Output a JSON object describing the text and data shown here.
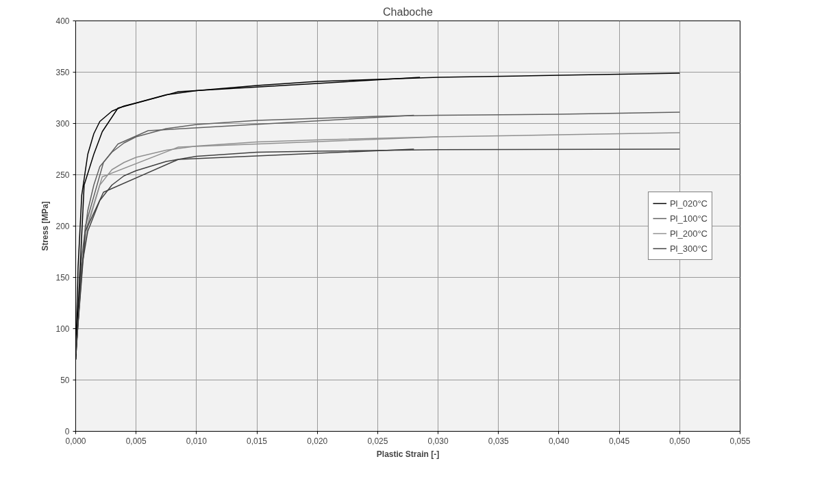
{
  "chart_data": {
    "type": "line",
    "title": "Chaboche",
    "xlabel": "Plastic Strain [-]",
    "ylabel": "Stress [MPa]",
    "xlim": [
      0,
      0.055
    ],
    "ylim": [
      0,
      400
    ],
    "xticks": [
      {
        "value": 0,
        "label": "0,000"
      },
      {
        "value": 0.005,
        "label": "0,005"
      },
      {
        "value": 0.01,
        "label": "0,010"
      },
      {
        "value": 0.015,
        "label": "0,015"
      },
      {
        "value": 0.02,
        "label": "0,020"
      },
      {
        "value": 0.025,
        "label": "0,025"
      },
      {
        "value": 0.03,
        "label": "0,030"
      },
      {
        "value": 0.035,
        "label": "0,035"
      },
      {
        "value": 0.04,
        "label": "0,040"
      },
      {
        "value": 0.045,
        "label": "0,045"
      },
      {
        "value": 0.05,
        "label": "0,050"
      },
      {
        "value": 0.055,
        "label": "0,055"
      }
    ],
    "yticks": [
      0,
      50,
      100,
      150,
      200,
      250,
      300,
      350,
      400
    ],
    "grid": true,
    "legend": "right",
    "marker": "none",
    "line_style": "solid",
    "series": [
      {
        "name": "Pl_020°C",
        "color": "#000000",
        "x": [
          0,
          0.0002,
          0.0005,
          0.001,
          0.0015,
          0.002,
          0.003,
          0.004,
          0.005,
          0.0075,
          0.01,
          0.015,
          0.02,
          0.025,
          0.03,
          0.04,
          0.05
        ],
        "values": [
          70,
          160,
          230,
          270,
          290,
          302,
          312,
          317,
          320,
          328,
          332,
          337,
          341,
          343,
          345,
          347,
          349
        ]
      },
      {
        "name": "Pl_100°C",
        "color": "#606060",
        "x": [
          0,
          0.0005,
          0.001,
          0.0015,
          0.002,
          0.003,
          0.004,
          0.005,
          0.0075,
          0.01,
          0.015,
          0.02,
          0.025,
          0.03,
          0.04,
          0.05
        ],
        "values": [
          70,
          170,
          215,
          240,
          258,
          272,
          281,
          287,
          295,
          299,
          303,
          305,
          307,
          308,
          309,
          311
        ]
      },
      {
        "name": "Pl_200°C",
        "color": "#909090",
        "x": [
          0,
          0.0005,
          0.001,
          0.002,
          0.003,
          0.004,
          0.005,
          0.0075,
          0.01,
          0.015,
          0.02,
          0.03,
          0.04,
          0.05
        ],
        "values": [
          70,
          160,
          200,
          240,
          255,
          262,
          267,
          274,
          278,
          282,
          284,
          287,
          289,
          291
        ]
      },
      {
        "name": "Pl_300°C",
        "color": "#404040",
        "x": [
          0,
          0.0005,
          0.001,
          0.002,
          0.003,
          0.004,
          0.005,
          0.0075,
          0.01,
          0.015,
          0.02,
          0.03,
          0.05
        ],
        "values": [
          70,
          160,
          195,
          225,
          240,
          249,
          254,
          263,
          268,
          272,
          273,
          274.5,
          275
        ]
      },
      {
        "color": "#000000",
        "x": [
          0,
          0.0007,
          0.0015,
          0.0022,
          0.0035,
          0.0085,
          0.0285
        ],
        "values": [
          70,
          240,
          270,
          292,
          315,
          331,
          345
        ]
      },
      {
        "color": "#606060",
        "x": [
          0,
          0.0008,
          0.0023,
          0.0035,
          0.006,
          0.028
        ],
        "values": [
          75,
          200,
          262,
          280,
          293,
          308
        ]
      },
      {
        "color": "#909090",
        "x": [
          0.0008,
          0.0022,
          0.0085,
          0.03
        ],
        "values": [
          195,
          248,
          277,
          287
        ]
      },
      {
        "color": "#404040",
        "x": [
          0,
          0.0008,
          0.0023,
          0.0085,
          0.028
        ],
        "values": [
          75,
          195,
          233,
          265,
          275
        ]
      }
    ]
  }
}
